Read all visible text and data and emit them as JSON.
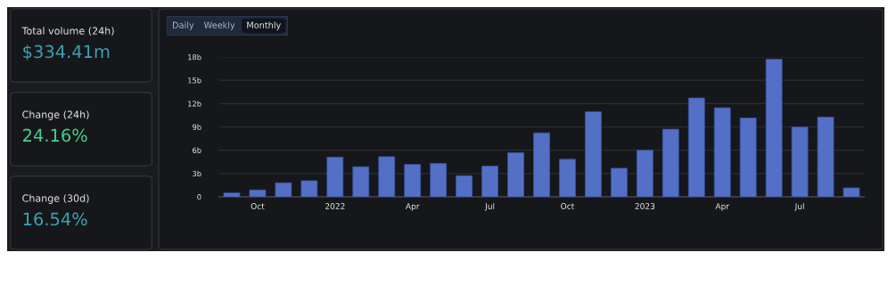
{
  "chart_data": [
    {
      "type": "other",
      "title": "Total volume (24h)",
      "annotations": [
        "$334.41m"
      ]
    },
    {
      "type": "other",
      "title": "Change (24h)",
      "annotations": [
        "24.16%"
      ]
    },
    {
      "type": "other",
      "title": "Change (30d)",
      "annotations": [
        "16.54%"
      ]
    },
    {
      "type": "bar",
      "annotations": [
        "Daily",
        "Weekly",
        "Monthly"
      ],
      "categories": [
        null,
        "Oct",
        null,
        null,
        "2022",
        null,
        null,
        "Apr",
        null,
        null,
        "Jul",
        null,
        null,
        "Oct",
        null,
        null,
        "2023",
        null,
        null,
        "Apr",
        null,
        null,
        "Jul",
        null,
        null
      ],
      "values": [
        0.5,
        0.88,
        1.8,
        2.07,
        5.1,
        3.87,
        5.17,
        4.17,
        4.29,
        2.72,
        3.95,
        5.67,
        8.24,
        4.83,
        10.96,
        3.68,
        6.0,
        8.7,
        12.72,
        11.46,
        10.15,
        17.7,
        8.97,
        10.27,
        1.15
      ],
      "color": "#5470c6",
      "ylim": [
        0,
        18
      ],
      "yticks": [
        {
          "value": 0,
          "label": "0"
        },
        {
          "value": 3,
          "label": "3b"
        },
        {
          "value": 6,
          "label": "6b"
        },
        {
          "value": 9,
          "label": "9b"
        },
        {
          "value": 12,
          "label": "12b"
        },
        {
          "value": 15,
          "label": "15b"
        },
        {
          "value": 18,
          "label": "18b"
        }
      ],
      "grid": "y",
      "legend": false
    }
  ]
}
